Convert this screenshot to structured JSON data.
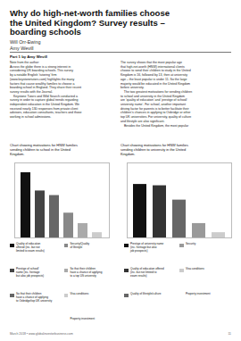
{
  "title": "Why do high-net-worth families choose\nthe United Kingdom? Survey results –\nboarding schools",
  "authors": [
    "Will Orr-Ewing",
    "Amy Wevill"
  ],
  "subtitle": "Part 1 by Amy Wevill",
  "annotations": [
    "Note from the author:\nAcross the globe there is a strong interest in\nconsidering UK boarding schools. This survey\nby a notable English ‘tutoring’ firm\n(www.keystonetutors.com) highlights the many\nfactors that cause wealthy families to choose a\nboarding school in England. They share their recent\nsurvey results with the Journal.\n    Keystone Tutors and Wild Search conducted a\nsurvey in order to capture global trends regarding\nindependent education in the United Kingdom. We\nreceived nearly 130 responses from private client\nadvisors, education consultants, teachers and those\nworking in school admissions.",
    "The survey shows that the most popular age\nthat high-net-worth (HNW) international clients\nchoose to send their children to study in the United\nKingdom is 16, followed by 13, then at university\nage – the least popular is under 11. So the large\nmajority would be educated in the United Kingdom\nbefore university.\n    The two greatest motivations for sending children\nto school and university in the United Kingdom\nare ‘quality of education’ and ‘prestige of school/\nuniversity name’. For school, another important\ndriving factor for parents is to better facilitate their\nchildren’s chances in applying to Oxbridge or other\ntop UK universities. For university, quality of culture\nand lifestyle are also significant.\n    Besides the United Kingdom, the most popular"
  ],
  "footer": "March 2018 • www.globalinvestorbusiness.com",
  "page_number": "11",
  "chart_data": [
    {
      "type": "bar",
      "title": "Chart showing motivations for HNW families\nsending children to school in the United\nKingdom.",
      "categories": [
        "Quality of education\noffered (inc. but not\nlimited to exam results)",
        "Prestige of school/\nname (inc. heritage\nbut also job prospects)",
        "So that their children\nhave a chance of applying\nto Oxbridge/top UK university",
        "Security/Quality\nof lifestyle",
        "So that their children\nhave a chance of applying\nto a top US university",
        "Visa conditions",
        "Property investment"
      ],
      "values": [
        100,
        72,
        65,
        38,
        22,
        8,
        null
      ],
      "colors": [
        "#111111",
        "#444444",
        "#666666",
        "#888888",
        "#aaaaaa",
        "#cccccc",
        null
      ],
      "ylim": [
        0,
        115
      ],
      "tick_labels": false,
      "legend": "bottom"
    },
    {
      "type": "bar",
      "title": "Chart showing motivations for HNW families\nsending children to university in the United\nKingdom.",
      "categories": [
        "Prestige of university name\n(inc. heritage but also\njob prospects)",
        "Quality of education offered\n(inc. but not limited to\nexam results)",
        "Quality of lifestyle/culture",
        "Security",
        "Visa conditions",
        "Property investment"
      ],
      "values": [
        82,
        80,
        58,
        22,
        8,
        null
      ],
      "colors": [
        "#111111",
        "#333333",
        "#666666",
        "#999999",
        "#cccccc",
        null
      ],
      "ylim": [
        0,
        115
      ],
      "tick_labels": false,
      "legend": "bottom"
    }
  ]
}
